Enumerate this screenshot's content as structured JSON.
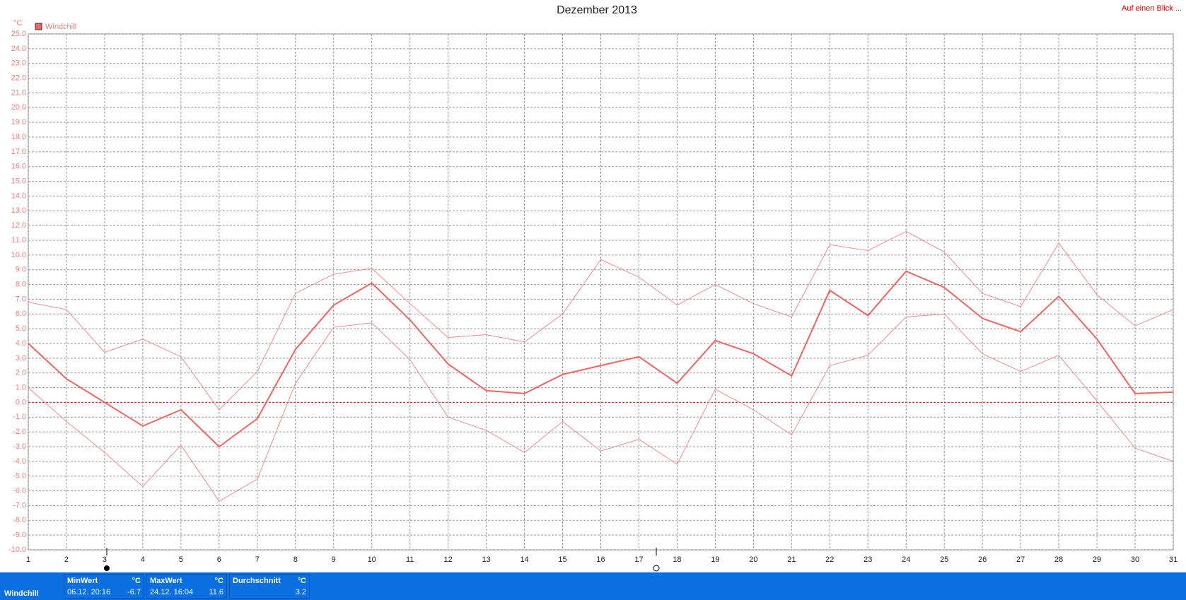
{
  "chart_data": {
    "type": "line",
    "title": "Dezember 2013",
    "y_label": "°C",
    "corner_link": "Auf einen Blick ...",
    "x": [
      1,
      2,
      3,
      4,
      5,
      6,
      7,
      8,
      9,
      10,
      11,
      12,
      13,
      14,
      15,
      16,
      17,
      18,
      19,
      20,
      21,
      22,
      23,
      24,
      25,
      26,
      27,
      28,
      29,
      30,
      31
    ],
    "xlim": [
      1,
      31
    ],
    "xticks": [
      1,
      2,
      3,
      4,
      5,
      6,
      7,
      8,
      9,
      10,
      11,
      12,
      13,
      14,
      15,
      16,
      17,
      18,
      19,
      20,
      21,
      22,
      23,
      24,
      25,
      26,
      27,
      28,
      29,
      30,
      31
    ],
    "ylim": [
      -10,
      25
    ],
    "yticks": [
      {
        "value": -10,
        "label": "-10.0"
      },
      {
        "value": -9,
        "label": "-9.0"
      },
      {
        "value": -8,
        "label": "-8.0"
      },
      {
        "value": -7,
        "label": "-7.0"
      },
      {
        "value": -6,
        "label": "-6.0"
      },
      {
        "value": -5,
        "label": "-5.0"
      },
      {
        "value": -4,
        "label": "-4.0"
      },
      {
        "value": -3,
        "label": "-3.0"
      },
      {
        "value": -2,
        "label": "-2.0"
      },
      {
        "value": -1,
        "label": "-1.0"
      },
      {
        "value": 0,
        "label": "0.0"
      },
      {
        "value": 1,
        "label": "1.0"
      },
      {
        "value": 2,
        "label": "2.0"
      },
      {
        "value": 3,
        "label": "3.0"
      },
      {
        "value": 4,
        "label": "4.0"
      },
      {
        "value": 5,
        "label": "5.0"
      },
      {
        "value": 6,
        "label": "6.0"
      },
      {
        "value": 7,
        "label": "7.0"
      },
      {
        "value": 8,
        "label": "8.0"
      },
      {
        "value": 9,
        "label": "9.0"
      },
      {
        "value": 10,
        "label": "10.0"
      },
      {
        "value": 11,
        "label": "11.0"
      },
      {
        "value": 12,
        "label": "12.0"
      },
      {
        "value": 13,
        "label": "13.0"
      },
      {
        "value": 14,
        "label": "14.0"
      },
      {
        "value": 15,
        "label": "15.0"
      },
      {
        "value": 16,
        "label": "16.0"
      },
      {
        "value": 17,
        "label": "17.0"
      },
      {
        "value": 18,
        "label": "18.0"
      },
      {
        "value": 19,
        "label": "19.0"
      },
      {
        "value": 20,
        "label": "20.0"
      },
      {
        "value": 21,
        "label": "21.0"
      },
      {
        "value": 22,
        "label": "22.0"
      },
      {
        "value": 23,
        "label": "23.0"
      },
      {
        "value": 24,
        "label": "24.0"
      },
      {
        "value": 25,
        "label": "25.0"
      }
    ],
    "grid": true,
    "reference_line": {
      "value": 0,
      "color": "#e02020"
    },
    "series": [
      {
        "name": "Windchill",
        "color": "#f06464",
        "width": 2,
        "values": [
          4.0,
          1.6,
          0.0,
          -1.6,
          -0.5,
          -3.0,
          -1.1,
          3.6,
          6.6,
          8.1,
          5.6,
          2.6,
          0.8,
          0.6,
          1.9,
          2.5,
          3.1,
          1.3,
          4.2,
          3.3,
          1.8,
          7.6,
          5.9,
          8.9,
          7.8,
          5.7,
          4.8,
          7.2,
          4.3,
          0.6,
          0.7
        ]
      },
      {
        "color": "#f28c8c",
        "width": 1,
        "values": [
          6.8,
          6.3,
          3.4,
          4.3,
          3.1,
          -0.5,
          2.1,
          7.4,
          8.7,
          9.1,
          6.7,
          4.4,
          4.6,
          4.1,
          6.0,
          9.7,
          8.5,
          6.6,
          8.0,
          6.7,
          5.8,
          10.7,
          10.3,
          11.6,
          10.2,
          7.4,
          6.5,
          10.8,
          7.3,
          5.2,
          6.3
        ]
      },
      {
        "color": "#f28c8c",
        "width": 1,
        "values": [
          1.0,
          -1.3,
          -3.4,
          -5.7,
          -2.9,
          -6.7,
          -5.2,
          1.3,
          5.1,
          5.4,
          2.9,
          -1.0,
          -1.9,
          -3.4,
          -1.3,
          -3.3,
          -2.5,
          -4.2,
          0.9,
          -0.5,
          -2.2,
          2.5,
          3.2,
          5.8,
          6.0,
          3.3,
          2.1,
          3.2,
          0.1,
          -3.1,
          -4.0
        ]
      }
    ]
  },
  "summary": {
    "label": "Windchill",
    "cells": [
      {
        "title": "MinWert",
        "unit": "°C",
        "time": "06.12.  20:16",
        "value": "-6.7"
      },
      {
        "title": "MaxWert",
        "unit": "°C",
        "time": "24.12.  16:04",
        "value": "11.6"
      },
      {
        "title": "Durchschnitt",
        "unit": "°C",
        "value": "3.2"
      }
    ]
  }
}
